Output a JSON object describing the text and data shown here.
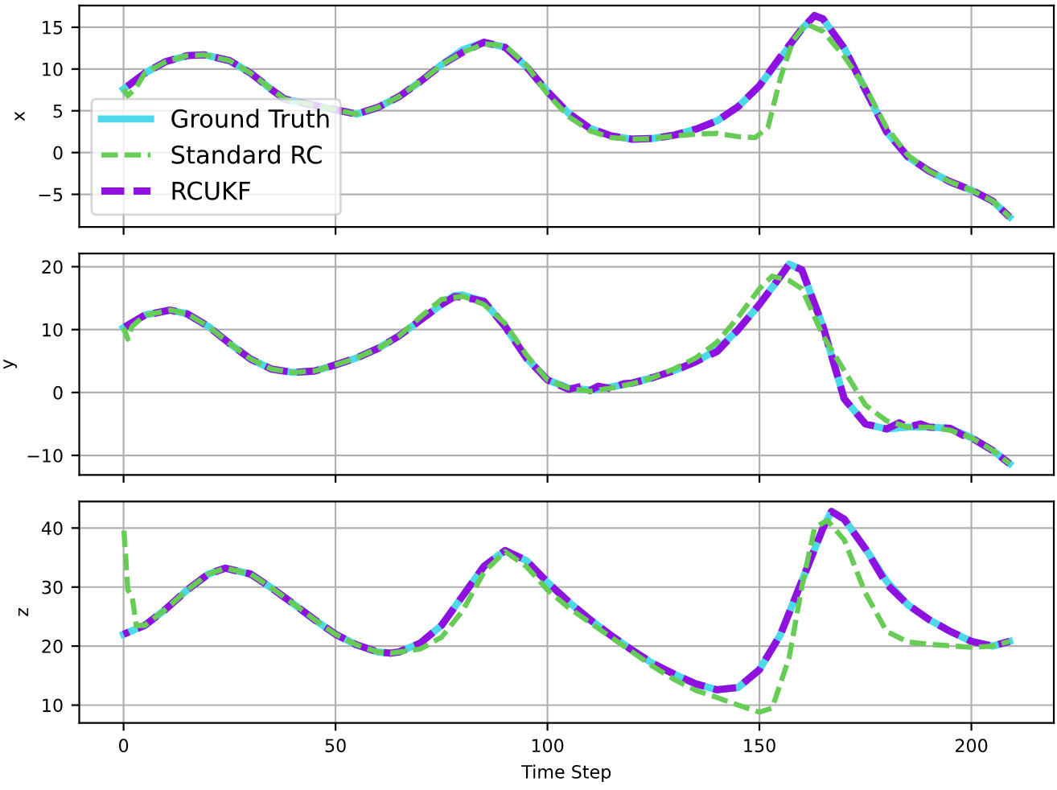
{
  "chart_data": [
    {
      "type": "line",
      "ylabel": "x",
      "xlim": [
        -10.45,
        219.45
      ],
      "ylim": [
        -8.9,
        17.6
      ],
      "xticks": [
        0,
        50,
        100,
        150,
        200
      ],
      "yticks": [
        {
          "value": -5,
          "label": "−5"
        },
        0,
        5,
        10,
        15
      ],
      "tick_labels": "y",
      "grid": true,
      "legend": "lower left",
      "series": [
        {
          "name": "Ground Truth",
          "color": "#4dd9e8",
          "line_style": "solid",
          "x": [
            0,
            5,
            10,
            15,
            19,
            25,
            30,
            35,
            38,
            45,
            50,
            55,
            60,
            65,
            70,
            75,
            80,
            85,
            90,
            95,
            100,
            105,
            110,
            115,
            120,
            125,
            130,
            135,
            140,
            145,
            150,
            155,
            160,
            163,
            165,
            170,
            175,
            180,
            185,
            190,
            195,
            200,
            205,
            209
          ],
          "values": [
            7.6,
            9.5,
            10.9,
            11.6,
            11.7,
            11.0,
            9.5,
            7.5,
            6.4,
            null,
            null,
            4.6,
            5.4,
            6.7,
            8.5,
            10.5,
            12.3,
            13.2,
            12.6,
            10.3,
            7.3,
            4.7,
            2.9,
            2.0,
            1.6,
            1.7,
            2.1,
            2.8,
            3.8,
            5.5,
            8.0,
            11.3,
            14.8,
            16.4,
            16.0,
            12.5,
            7.5,
            2.5,
            -0.5,
            -2.2,
            -3.5,
            -4.5,
            -5.8,
            -7.7
          ]
        },
        {
          "name": "Standard RC",
          "color": "#66cc55",
          "line_style": "dashed",
          "x": [
            0,
            1,
            3,
            5,
            10,
            15,
            19,
            25,
            30,
            35,
            38,
            45,
            50,
            55,
            60,
            65,
            70,
            75,
            80,
            85,
            90,
            95,
            100,
            105,
            110,
            115,
            120,
            125,
            130,
            135,
            140,
            145,
            149,
            152,
            155,
            158,
            161,
            165,
            170,
            175,
            180,
            185,
            190,
            195,
            200,
            205,
            209
          ],
          "values": [
            7.6,
            6.8,
            7.8,
            9.5,
            10.9,
            11.6,
            11.7,
            11.0,
            9.5,
            7.5,
            6.4,
            null,
            null,
            4.6,
            5.4,
            6.7,
            8.5,
            10.5,
            12.0,
            13.0,
            12.8,
            10.5,
            7.0,
            4.3,
            2.6,
            1.8,
            1.6,
            1.7,
            2.0,
            2.2,
            2.3,
            1.9,
            1.8,
            3.0,
            9.0,
            13.5,
            15.4,
            14.5,
            11.5,
            7.8,
            3.0,
            -0.3,
            -2.2,
            -3.5,
            -4.5,
            -5.8,
            -7.7
          ]
        },
        {
          "name": "RCUKF",
          "color": "#9010e0",
          "line_style": "dashed",
          "x": [
            0,
            5,
            10,
            15,
            19,
            25,
            30,
            35,
            38,
            45,
            50,
            55,
            60,
            65,
            70,
            75,
            80,
            85,
            90,
            95,
            100,
            105,
            110,
            115,
            120,
            125,
            130,
            135,
            140,
            145,
            150,
            155,
            160,
            163,
            165,
            170,
            175,
            180,
            185,
            190,
            195,
            200,
            205,
            209
          ],
          "values": [
            7.6,
            9.5,
            10.9,
            11.6,
            11.7,
            11.0,
            9.5,
            7.5,
            6.4,
            null,
            null,
            4.6,
            5.4,
            6.7,
            8.5,
            10.5,
            12.0,
            13.2,
            12.6,
            10.3,
            7.3,
            4.7,
            2.9,
            2.0,
            1.6,
            1.7,
            2.1,
            2.8,
            3.8,
            5.5,
            8.0,
            11.5,
            14.8,
            16.4,
            16.0,
            12.5,
            7.5,
            2.5,
            -0.5,
            -2.2,
            -3.5,
            -4.5,
            -5.8,
            -7.7
          ]
        }
      ]
    },
    {
      "type": "line",
      "ylabel": "y",
      "xlim": [
        -10.45,
        219.45
      ],
      "ylim": [
        -13.1,
        22.1
      ],
      "xticks": [
        0,
        50,
        100,
        150,
        200
      ],
      "yticks": [
        {
          "value": -10,
          "label": "−10"
        },
        0,
        10,
        20
      ],
      "tick_labels": "y",
      "grid": true,
      "series": [
        {
          "color": "#4dd9e8",
          "line_style": "solid",
          "x": [
            0,
            5,
            11,
            15,
            20,
            25,
            30,
            35,
            40,
            45,
            50,
            55,
            60,
            65,
            70,
            75,
            78,
            80,
            85,
            90,
            95,
            100,
            105,
            110,
            115,
            120,
            125,
            130,
            135,
            140,
            145,
            150,
            155,
            157,
            160,
            165,
            170,
            175,
            180,
            185,
            190,
            195,
            200,
            205,
            209
          ],
          "values": [
            10.3,
            12.3,
            13.1,
            12.5,
            10.5,
            7.8,
            5.3,
            3.7,
            3.2,
            3.4,
            4.4,
            5.5,
            7.0,
            9.0,
            11.5,
            14.0,
            15.4,
            15.5,
            14.5,
            10.5,
            5.5,
            2.0,
            0.7,
            0.4,
            0.9,
            1.5,
            2.4,
            3.5,
            4.9,
            6.8,
            10.0,
            14.0,
            18.5,
            20.4,
            19.5,
            10.5,
            -1.0,
            -5.0,
            -5.8,
            -5.5,
            -5.5,
            -5.7,
            -7.2,
            -9.2,
            -11.3
          ]
        },
        {
          "color": "#66cc55",
          "line_style": "dashed",
          "x": [
            0,
            1,
            2,
            5,
            11,
            15,
            20,
            25,
            30,
            35,
            40,
            45,
            50,
            55,
            60,
            65,
            70,
            75,
            80,
            85,
            90,
            95,
            100,
            105,
            110,
            115,
            120,
            125,
            130,
            135,
            140,
            145,
            150,
            153,
            157,
            160,
            165,
            170,
            175,
            180,
            185,
            190,
            195,
            200,
            205,
            209
          ],
          "values": [
            10.3,
            8.5,
            10.5,
            12.3,
            13.1,
            12.5,
            10.5,
            7.8,
            5.3,
            3.7,
            3.2,
            3.4,
            4.4,
            5.5,
            7.0,
            9.0,
            12.0,
            14.8,
            15.3,
            14.0,
            11.0,
            6.0,
            2.0,
            0.7,
            0.2,
            0.7,
            1.4,
            2.4,
            3.8,
            5.5,
            8.0,
            12.0,
            16.5,
            18.5,
            17.8,
            16.5,
            9.0,
            3.5,
            -2.0,
            -4.5,
            -5.5,
            -5.5,
            -6.0,
            -7.2,
            -9.2,
            -11.3
          ]
        },
        {
          "color": "#9010e0",
          "line_style": "dashed",
          "x": [
            0,
            5,
            11,
            15,
            20,
            25,
            30,
            35,
            40,
            45,
            50,
            55,
            60,
            65,
            70,
            75,
            78,
            80,
            85,
            90,
            95,
            100,
            105,
            108,
            110,
            112,
            115,
            118,
            120,
            125,
            130,
            135,
            140,
            145,
            150,
            155,
            157,
            160,
            165,
            170,
            175,
            180,
            183,
            185,
            188,
            190,
            195,
            198,
            200,
            205,
            209
          ],
          "values": [
            10.3,
            12.3,
            13.1,
            12.5,
            10.5,
            7.8,
            5.3,
            3.7,
            3.2,
            3.4,
            4.4,
            5.5,
            7.0,
            9.0,
            11.5,
            14.0,
            15.2,
            15.2,
            14.5,
            10.5,
            5.5,
            2.0,
            0.5,
            1.0,
            0.3,
            1.0,
            0.6,
            1.4,
            1.5,
            2.4,
            3.5,
            4.9,
            6.5,
            10.0,
            14.0,
            18.5,
            20.4,
            19.5,
            10.5,
            -1.0,
            -5.0,
            -5.8,
            -4.8,
            -5.5,
            -5.0,
            -5.5,
            -5.7,
            -6.8,
            -7.2,
            -9.2,
            -11.3
          ]
        }
      ]
    },
    {
      "type": "line",
      "ylabel": "z",
      "xlabel": "Time Step",
      "xlim": [
        -10.45,
        219.45
      ],
      "ylim": [
        7.0,
        44.5
      ],
      "xticks": [
        0,
        50,
        100,
        150,
        200
      ],
      "yticks": [
        10,
        20,
        30,
        40
      ],
      "grid": true,
      "series": [
        {
          "color": "#4dd9e8",
          "line_style": "solid",
          "x": [
            0,
            5,
            10,
            15,
            20,
            24,
            30,
            35,
            40,
            45,
            50,
            55,
            60,
            63,
            65,
            70,
            75,
            80,
            85,
            90,
            95,
            100,
            105,
            110,
            115,
            120,
            125,
            130,
            135,
            140,
            145,
            150,
            155,
            160,
            165,
            167,
            170,
            175,
            180,
            185,
            190,
            195,
            200,
            205,
            209
          ],
          "values": [
            22.0,
            23.5,
            26.3,
            29.5,
            32.2,
            33.2,
            32.2,
            29.8,
            27.2,
            24.5,
            22.0,
            20.2,
            19.0,
            18.8,
            19.0,
            20.5,
            23.5,
            28.5,
            33.5,
            36.2,
            34.5,
            30.8,
            27.5,
            24.5,
            21.8,
            19.3,
            17.0,
            15.2,
            13.6,
            12.6,
            13.0,
            16.0,
            22.0,
            31.0,
            40.0,
            42.8,
            41.5,
            36.5,
            31.0,
            27.0,
            24.5,
            22.5,
            20.8,
            20.0,
            20.8
          ]
        },
        {
          "color": "#66cc55",
          "line_style": "dashed",
          "x": [
            0,
            1,
            2,
            3,
            5,
            10,
            15,
            20,
            24,
            30,
            35,
            40,
            45,
            50,
            55,
            60,
            63,
            65,
            70,
            75,
            80,
            85,
            90,
            95,
            100,
            105,
            110,
            115,
            120,
            125,
            130,
            135,
            140,
            145,
            150,
            153,
            157,
            160,
            163,
            166,
            170,
            175,
            180,
            185,
            190,
            200,
            205,
            209
          ],
          "values": [
            40.5,
            29.5,
            28.5,
            23.5,
            23.5,
            26.3,
            29.5,
            32.2,
            33.2,
            32.2,
            29.8,
            27.2,
            24.5,
            22.0,
            20.2,
            19.0,
            18.8,
            19.0,
            19.5,
            21.5,
            26.0,
            32.5,
            36.0,
            33.5,
            29.5,
            26.5,
            24.0,
            21.5,
            19.0,
            16.5,
            14.3,
            12.5,
            11.3,
            10.0,
            8.8,
            9.5,
            18.0,
            30.0,
            40.0,
            41.3,
            38.0,
            29.0,
            22.5,
            20.7,
            20.3,
            19.8,
            20.0,
            20.8
          ]
        },
        {
          "color": "#9010e0",
          "line_style": "dashed",
          "x": [
            0,
            5,
            10,
            15,
            20,
            24,
            30,
            35,
            40,
            45,
            50,
            55,
            60,
            63,
            65,
            70,
            75,
            80,
            85,
            90,
            95,
            100,
            105,
            110,
            115,
            120,
            125,
            130,
            135,
            140,
            145,
            150,
            155,
            160,
            165,
            167,
            170,
            175,
            180,
            185,
            190,
            195,
            200,
            205,
            209
          ],
          "values": [
            22.0,
            23.5,
            26.3,
            29.5,
            32.2,
            33.2,
            32.2,
            29.8,
            27.2,
            24.5,
            22.0,
            20.2,
            19.0,
            18.8,
            19.0,
            20.5,
            23.5,
            28.5,
            33.5,
            36.2,
            34.5,
            30.8,
            27.5,
            24.5,
            21.8,
            19.3,
            17.0,
            15.2,
            13.6,
            12.6,
            13.0,
            16.0,
            22.0,
            31.0,
            40.0,
            42.8,
            41.5,
            36.5,
            30.5,
            27.0,
            24.5,
            22.5,
            20.8,
            20.0,
            20.8
          ]
        }
      ]
    }
  ]
}
